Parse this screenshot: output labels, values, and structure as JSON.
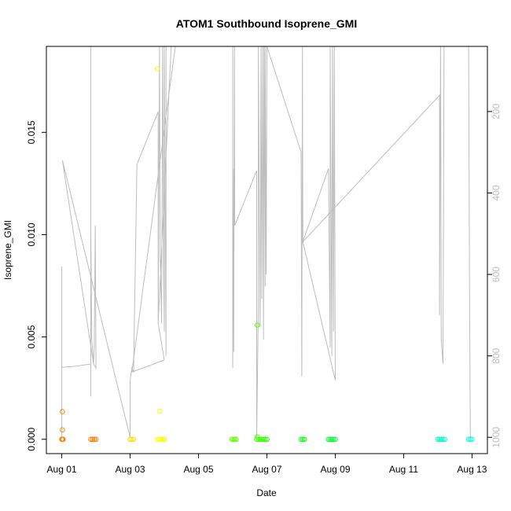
{
  "chart_data": {
    "type": "scatter",
    "title": "ATOM1 Southbound Isoprene_GMI",
    "xlabel": "Date",
    "ylabel": "Isoprene_GMI",
    "x_ticks": [
      "Aug 01",
      "Aug 03",
      "Aug 05",
      "Aug 07",
      "Aug 09",
      "Aug 11",
      "Aug 13"
    ],
    "x_tick_days": [
      1,
      3,
      5,
      7,
      9,
      11,
      13
    ],
    "xlim_days": [
      0.55,
      13.45
    ],
    "ylim": [
      -0.0007,
      0.0192
    ],
    "y_ticks": [
      0.0,
      0.005,
      0.01,
      0.015
    ],
    "y_tick_labels": [
      "0.000",
      "0.005",
      "0.010",
      "0.015"
    ],
    "right_axis": {
      "description": "pressure overlay (grey line), inverted",
      "ticks": [
        200,
        400,
        600,
        800,
        1000
      ],
      "tick_labels": [
        "200",
        "400",
        "600",
        "800",
        "1000"
      ],
      "lim_top": 40,
      "lim_bottom": 1040,
      "color": "#bdbdbd"
    },
    "points": [
      {
        "x": 1.0,
        "y": 0.0,
        "color": "#ff7f00"
      },
      {
        "x": 1.02,
        "y": 0.0,
        "color": "#ff7f00"
      },
      {
        "x": 1.04,
        "y": 0.0,
        "color": "#ff7f00"
      },
      {
        "x": 1.02,
        "y": 0.00046,
        "color": "#ff8c00"
      },
      {
        "x": 1.02,
        "y": 0.00135,
        "color": "#ff8c00"
      },
      {
        "x": 1.85,
        "y": 0.0,
        "color": "#ff7f00"
      },
      {
        "x": 1.9,
        "y": 0.0,
        "color": "#ff7f00"
      },
      {
        "x": 1.95,
        "y": 0.0,
        "color": "#ff8000"
      },
      {
        "x": 2.0,
        "y": 0.0,
        "color": "#ff8000"
      },
      {
        "x": 3.0,
        "y": 0.0,
        "color": "#ffd400"
      },
      {
        "x": 3.05,
        "y": 0.0,
        "color": "#ffdc00"
      },
      {
        "x": 3.1,
        "y": 0.0,
        "color": "#ffe000"
      },
      {
        "x": 3.8,
        "y": 0.0,
        "color": "#ffff00"
      },
      {
        "x": 3.85,
        "y": 0.0,
        "color": "#f8ff00"
      },
      {
        "x": 3.9,
        "y": 0.0,
        "color": "#f4ff00"
      },
      {
        "x": 3.95,
        "y": 0.0,
        "color": "#f0ff00"
      },
      {
        "x": 4.0,
        "y": 0.0,
        "color": "#eeff00"
      },
      {
        "x": 3.87,
        "y": 0.00138,
        "color": "#f0ff00"
      },
      {
        "x": 3.8,
        "y": 0.0181,
        "color": "#f0ff00"
      },
      {
        "x": 5.98,
        "y": 0.0,
        "color": "#66ff00"
      },
      {
        "x": 6.02,
        "y": 0.0,
        "color": "#60ff00"
      },
      {
        "x": 6.06,
        "y": 0.0,
        "color": "#5cff00"
      },
      {
        "x": 6.1,
        "y": 0.0,
        "color": "#58ff00"
      },
      {
        "x": 6.7,
        "y": 0.0,
        "color": "#44ff00"
      },
      {
        "x": 6.75,
        "y": 0.0,
        "color": "#40ff00"
      },
      {
        "x": 6.8,
        "y": 0.0,
        "color": "#3cff00"
      },
      {
        "x": 6.85,
        "y": 0.0,
        "color": "#38ff00"
      },
      {
        "x": 6.9,
        "y": 0.0,
        "color": "#34ff00"
      },
      {
        "x": 6.95,
        "y": 0.0,
        "color": "#30ff00"
      },
      {
        "x": 7.0,
        "y": 0.0,
        "color": "#2cff00"
      },
      {
        "x": 6.72,
        "y": 0.00012,
        "color": "#46ff00"
      },
      {
        "x": 6.72,
        "y": 0.00558,
        "color": "#5cff00"
      },
      {
        "x": 8.0,
        "y": 0.0,
        "color": "#14ff10"
      },
      {
        "x": 8.05,
        "y": 0.0,
        "color": "#12ff14"
      },
      {
        "x": 8.1,
        "y": 0.0,
        "color": "#10ff18"
      },
      {
        "x": 8.8,
        "y": 0.0,
        "color": "#06ff2a"
      },
      {
        "x": 8.85,
        "y": 0.0,
        "color": "#04ff2e"
      },
      {
        "x": 8.9,
        "y": 0.0,
        "color": "#02ff32"
      },
      {
        "x": 8.95,
        "y": 0.0,
        "color": "#00ff36"
      },
      {
        "x": 9.0,
        "y": 0.0,
        "color": "#00ff3a"
      },
      {
        "x": 12.0,
        "y": 0.0,
        "color": "#00ffba"
      },
      {
        "x": 12.05,
        "y": 0.0,
        "color": "#00ffbe"
      },
      {
        "x": 12.1,
        "y": 0.0,
        "color": "#00ffc2"
      },
      {
        "x": 12.15,
        "y": 0.0,
        "color": "#00ffc6"
      },
      {
        "x": 12.2,
        "y": 0.0,
        "color": "#00ffca"
      },
      {
        "x": 12.9,
        "y": 0.0,
        "color": "#00ffdc"
      },
      {
        "x": 12.95,
        "y": 0.0,
        "color": "#00ffe0"
      },
      {
        "x": 13.0,
        "y": 0.0,
        "color": "#00ffe4"
      }
    ],
    "pressure_line": {
      "color": "#bdbdbd",
      "points": [
        [
          1.0,
          1000
        ],
        [
          1.0,
          580
        ],
        [
          1.0,
          828
        ],
        [
          1.45,
          825
        ],
        [
          1.85,
          820
        ],
        [
          1.85,
          900
        ],
        [
          1.85,
          40
        ],
        [
          1.85,
          500
        ],
        [
          1.88,
          760
        ],
        [
          1.93,
          820
        ],
        [
          1.95,
          780
        ],
        [
          1.98,
          480
        ],
        [
          2.0,
          830
        ],
        [
          1.93,
          820
        ],
        [
          1.02,
          320
        ],
        [
          3.0,
          1000
        ],
        [
          3.0,
          860
        ],
        [
          3.05,
          830
        ],
        [
          3.1,
          840
        ],
        [
          3.2,
          330
        ],
        [
          3.82,
          200
        ],
        [
          3.82,
          720
        ],
        [
          3.86,
          40
        ],
        [
          3.88,
          560
        ],
        [
          3.92,
          720
        ],
        [
          3.95,
          40
        ],
        [
          3.98,
          600
        ],
        [
          4.0,
          740
        ],
        [
          4.0,
          40
        ],
        [
          4.05,
          800
        ],
        [
          4.05,
          40
        ],
        [
          4.2,
          40
        ],
        [
          3.82,
          720
        ],
        [
          4.0,
          810
        ],
        [
          3.05,
          840
        ],
        [
          4.32,
          40
        ],
        [
          6.0,
          40
        ],
        [
          6.0,
          830
        ],
        [
          6.03,
          340
        ],
        [
          6.03,
          790
        ],
        [
          6.05,
          40
        ],
        [
          6.06,
          480
        ],
        [
          6.7,
          345
        ],
        [
          6.7,
          1000
        ],
        [
          6.75,
          680
        ],
        [
          6.75,
          40
        ],
        [
          6.8,
          730
        ],
        [
          6.83,
          40
        ],
        [
          6.85,
          660
        ],
        [
          6.88,
          40
        ],
        [
          6.9,
          760
        ],
        [
          6.92,
          40
        ],
        [
          6.95,
          630
        ],
        [
          6.95,
          40
        ],
        [
          6.98,
          600
        ],
        [
          7.0,
          40
        ],
        [
          8.0,
          300
        ],
        [
          8.02,
          850
        ],
        [
          8.04,
          40
        ],
        [
          8.05,
          520
        ],
        [
          8.8,
          340
        ],
        [
          8.85,
          780
        ],
        [
          8.85,
          40
        ],
        [
          8.9,
          800
        ],
        [
          8.92,
          40
        ],
        [
          8.95,
          740
        ],
        [
          8.97,
          40
        ],
        [
          9.0,
          860
        ],
        [
          8.05,
          520
        ],
        [
          12.05,
          160
        ],
        [
          12.05,
          700
        ],
        [
          12.08,
          40
        ],
        [
          12.1,
          760
        ],
        [
          12.15,
          820
        ],
        [
          12.18,
          40
        ],
        [
          12.9,
          40
        ],
        [
          12.93,
          700
        ],
        [
          12.95,
          1000
        ]
      ]
    }
  }
}
